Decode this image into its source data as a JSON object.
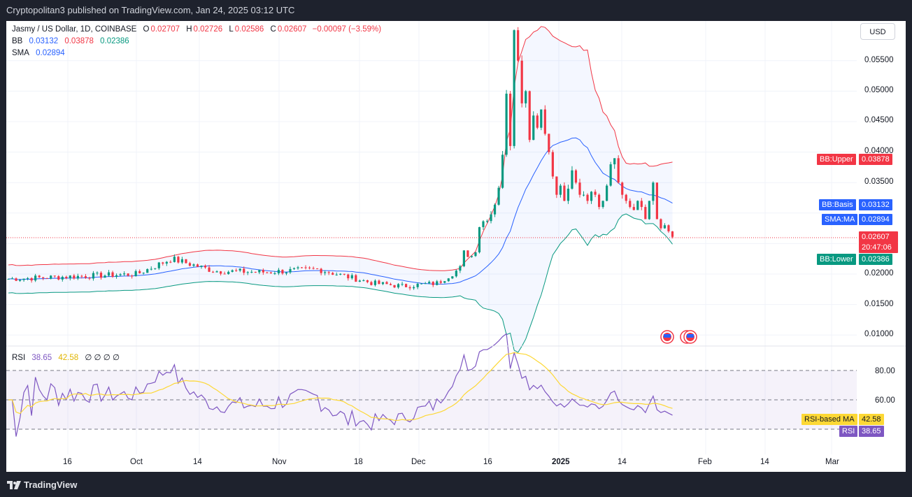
{
  "header": {
    "published": "Cryptopolitan3 published on TradingView.com, Jan 24, 2025 03:12 UTC"
  },
  "legend": {
    "symbol": "Jasmy / US Dollar, 1D, COINBASE",
    "o_label": "O",
    "o": "0.02707",
    "h_label": "H",
    "h": "0.02726",
    "l_label": "L",
    "l": "0.02586",
    "c_label": "C",
    "c": "0.02607",
    "change": "−0.00097 (−3.59%)",
    "bb_label": "BB",
    "bb_basis": "0.03132",
    "bb_upper": "0.03878",
    "bb_lower": "0.02386",
    "sma_label": "SMA",
    "sma": "0.02894",
    "rsi_label": "RSI",
    "rsi": "38.65",
    "rsi_ma": "42.58",
    "rsi_extra": "∅ ∅ ∅ ∅"
  },
  "currency_button": "USD",
  "price_axis": [
    "0.05500",
    "0.05000",
    "0.04500",
    "0.04000",
    "0.03500",
    "0.02000",
    "0.01500",
    "0.01000"
  ],
  "price_labels": {
    "bb_upper_name": "BB:Upper",
    "bb_upper_val": "0.03878",
    "bb_basis_name": "BB:Basis",
    "bb_basis_val": "0.03132",
    "sma_name": "SMA:MA",
    "sma_val": "0.02894",
    "last_price": "0.02607",
    "countdown": "20:47:06",
    "bb_lower_name": "BB:Lower",
    "bb_lower_val": "0.02386"
  },
  "rsi_axis": [
    "80.00",
    "60.00"
  ],
  "rsi_labels": {
    "ma_name": "RSI-based MA",
    "ma_val": "42.58",
    "rsi_name": "RSI",
    "rsi_val": "38.65"
  },
  "time_axis": [
    "16",
    "Oct",
    "14",
    "Nov",
    "18",
    "Dec",
    "16",
    "2025",
    "14",
    "Feb",
    "14",
    "Mar"
  ],
  "footer": {
    "brand": "TradingView"
  },
  "colors": {
    "up": "#089981",
    "down": "#f23645",
    "bb_upper": "#f23645",
    "bb_basis": "#2962ff",
    "bb_lower": "#089981",
    "rsi": "#7e57c2",
    "rsi_ma": "#fdd835"
  }
}
